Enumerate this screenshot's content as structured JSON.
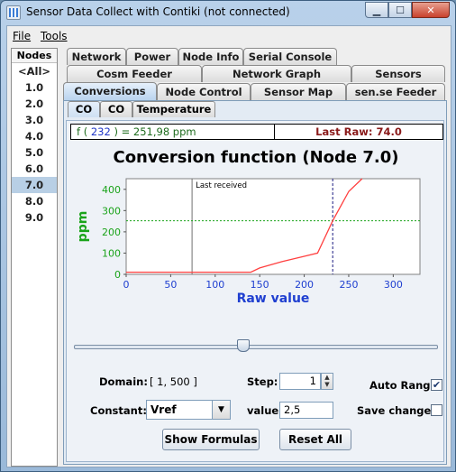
{
  "window": {
    "title": "Sensor Data Collect with Contiki (not connected)"
  },
  "menu": {
    "file": "File",
    "tools": "Tools"
  },
  "nodes": {
    "header": "Nodes",
    "items": [
      "<All>",
      "1.0",
      "2.0",
      "3.0",
      "4.0",
      "5.0",
      "6.0",
      "7.0",
      "8.0",
      "9.0"
    ],
    "selected": "7.0"
  },
  "tabs": {
    "row1": [
      "Network",
      "Power",
      "Node Info",
      "Serial Console"
    ],
    "row2": [
      "Cosm Feeder",
      "Network Graph",
      "Sensors"
    ],
    "row3": [
      "Conversions",
      "Node Control",
      "Sensor Map",
      "sen.se Feeder"
    ],
    "active": "Conversions"
  },
  "subtabs": {
    "items": [
      "CO",
      "CO",
      "Temperature"
    ],
    "active": "CO"
  },
  "formula": {
    "prefix": "f (",
    "raw": "232",
    "suffix": ") = 251,98 ppm"
  },
  "last_raw": "Last Raw: 74.0",
  "chart_data": {
    "type": "line",
    "title": "Conversion function (Node 7.0)",
    "xlabel": "Raw value",
    "ylabel": "ppm",
    "xlim": [
      0,
      330
    ],
    "ylim": [
      0,
      450
    ],
    "xticks": [
      0,
      50,
      100,
      150,
      200,
      250,
      300
    ],
    "yticks": [
      0,
      100,
      200,
      300,
      400
    ],
    "series": [
      {
        "x": [
          0,
          30,
          60,
          100,
          140,
          150,
          175,
          200,
          215,
          232,
          250,
          265
        ],
        "y": [
          10,
          10,
          10,
          10,
          10,
          30,
          60,
          85,
          100,
          252,
          390,
          450
        ]
      }
    ],
    "markers": {
      "last_received_x": 74,
      "last_received_label": "Last received",
      "current_x": 232,
      "current_y": 252
    },
    "colors": {
      "line": "#ff4040",
      "axis_ticks_x": "#1f3fd0",
      "axis_ticks_y": "#1aa31a",
      "current": "#1a1a80",
      "hline": "#1aa31a",
      "vline": "#707070"
    }
  },
  "slider": {
    "value": 232,
    "min": 1,
    "max": 500
  },
  "controls": {
    "domain_label": "Domain:",
    "domain_value": "[ 1, 500 ]",
    "step_label": "Step:",
    "step_value": "1",
    "auto_range_label": "Auto Range",
    "auto_range_checked": "✔",
    "constant_label": "Constant:",
    "constant_value": "Vref",
    "value_label": "value:",
    "value_value": "2,5",
    "save_changes_label": "Save changes",
    "show_formulas": "Show Formulas",
    "reset_all": "Reset All"
  }
}
